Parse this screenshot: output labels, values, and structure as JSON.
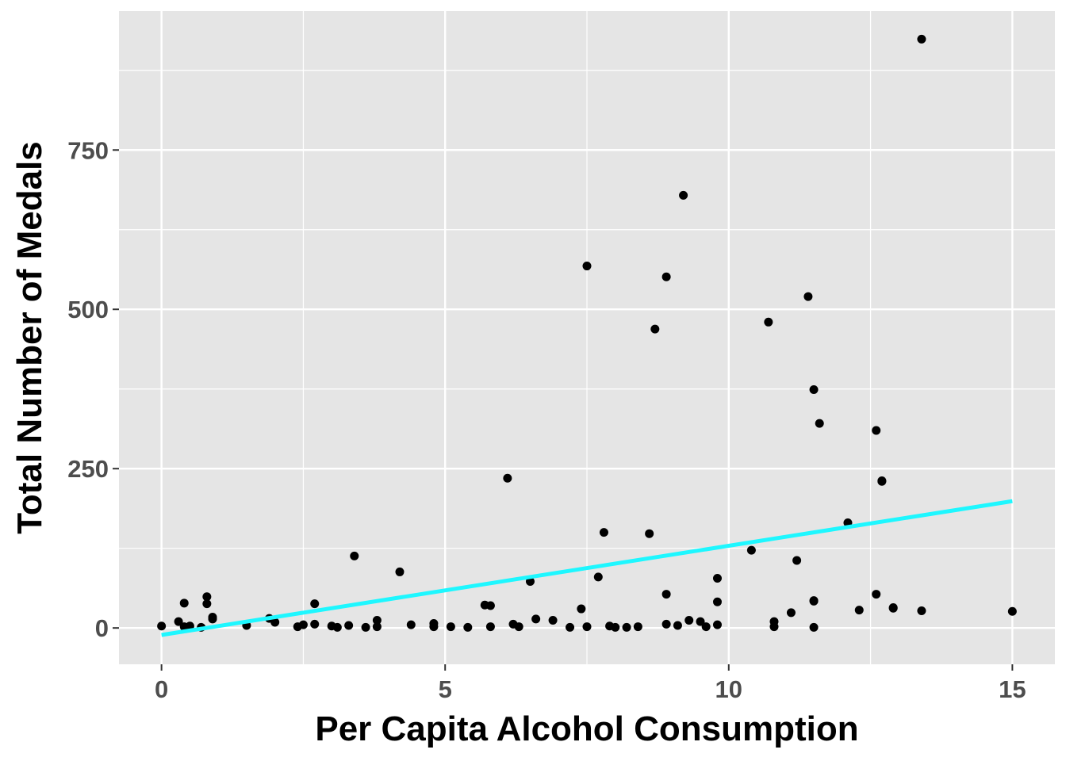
{
  "chart_data": {
    "type": "scatter",
    "title": "",
    "xlabel": "Per Capita Alcohol Consumption",
    "ylabel": "Total Number of Medals",
    "xlim": [
      -0.75,
      15.75
    ],
    "ylim": [
      -57,
      968
    ],
    "x_ticks": [
      0,
      5,
      10,
      15
    ],
    "x_tick_labels": [
      "0",
      "5",
      "10",
      "15"
    ],
    "x_minor_ticks": [
      2.5,
      7.5,
      12.5
    ],
    "y_ticks": [
      0,
      250,
      500,
      750
    ],
    "y_tick_labels": [
      "0",
      "250",
      "500",
      "750"
    ],
    "y_minor_ticks": [
      125,
      375,
      625,
      875
    ],
    "grid": true,
    "legend": "none",
    "colors": {
      "panel_background": "#e5e5e5",
      "grid": "#ffffff",
      "points": "#000000",
      "trend_line": "#1ef7ff"
    },
    "series": [
      {
        "points": [
          [
            0.0,
            3
          ],
          [
            0.3,
            10
          ],
          [
            0.4,
            2
          ],
          [
            0.4,
            39
          ],
          [
            0.5,
            3
          ],
          [
            0.7,
            1
          ],
          [
            0.8,
            38
          ],
          [
            0.8,
            49
          ],
          [
            0.9,
            14
          ],
          [
            0.9,
            17
          ],
          [
            1.5,
            4
          ],
          [
            1.9,
            15
          ],
          [
            2.0,
            9
          ],
          [
            2.4,
            2
          ],
          [
            2.5,
            5
          ],
          [
            2.7,
            38
          ],
          [
            2.7,
            6
          ],
          [
            3.0,
            3
          ],
          [
            3.1,
            1
          ],
          [
            3.3,
            4
          ],
          [
            3.4,
            113
          ],
          [
            3.6,
            1
          ],
          [
            3.8,
            2
          ],
          [
            3.8,
            12
          ],
          [
            4.2,
            88
          ],
          [
            4.4,
            5
          ],
          [
            4.8,
            2
          ],
          [
            4.8,
            7
          ],
          [
            5.1,
            2
          ],
          [
            5.4,
            1
          ],
          [
            5.7,
            36
          ],
          [
            5.8,
            35
          ],
          [
            5.8,
            2
          ],
          [
            6.1,
            235
          ],
          [
            6.2,
            6
          ],
          [
            6.3,
            2
          ],
          [
            6.5,
            73
          ],
          [
            6.6,
            14
          ],
          [
            6.9,
            12
          ],
          [
            7.2,
            1
          ],
          [
            7.4,
            30
          ],
          [
            7.5,
            568
          ],
          [
            7.5,
            2
          ],
          [
            7.7,
            80
          ],
          [
            7.8,
            150
          ],
          [
            7.9,
            3
          ],
          [
            8.0,
            1
          ],
          [
            8.2,
            1
          ],
          [
            8.4,
            2
          ],
          [
            8.6,
            148
          ],
          [
            8.7,
            469
          ],
          [
            8.9,
            551
          ],
          [
            8.9,
            53
          ],
          [
            8.9,
            6
          ],
          [
            9.1,
            4
          ],
          [
            9.2,
            679
          ],
          [
            9.3,
            12
          ],
          [
            9.5,
            10
          ],
          [
            9.6,
            2
          ],
          [
            9.8,
            78
          ],
          [
            9.8,
            41
          ],
          [
            9.8,
            5
          ],
          [
            10.4,
            122
          ],
          [
            10.7,
            480
          ],
          [
            10.8,
            10
          ],
          [
            10.8,
            2
          ],
          [
            11.1,
            24
          ],
          [
            11.2,
            106
          ],
          [
            11.4,
            520
          ],
          [
            11.5,
            374
          ],
          [
            11.5,
            42
          ],
          [
            11.5,
            43
          ],
          [
            11.5,
            1
          ],
          [
            11.6,
            321
          ],
          [
            12.1,
            165
          ],
          [
            12.3,
            28
          ],
          [
            12.6,
            310
          ],
          [
            12.6,
            53
          ],
          [
            12.7,
            231
          ],
          [
            12.7,
            230
          ],
          [
            12.9,
            32
          ],
          [
            12.9,
            31
          ],
          [
            13.4,
            924
          ],
          [
            13.4,
            27
          ],
          [
            15.0,
            26
          ]
        ]
      }
    ],
    "trend_line": {
      "x": [
        0,
        15
      ],
      "y": [
        -11,
        199
      ]
    }
  }
}
